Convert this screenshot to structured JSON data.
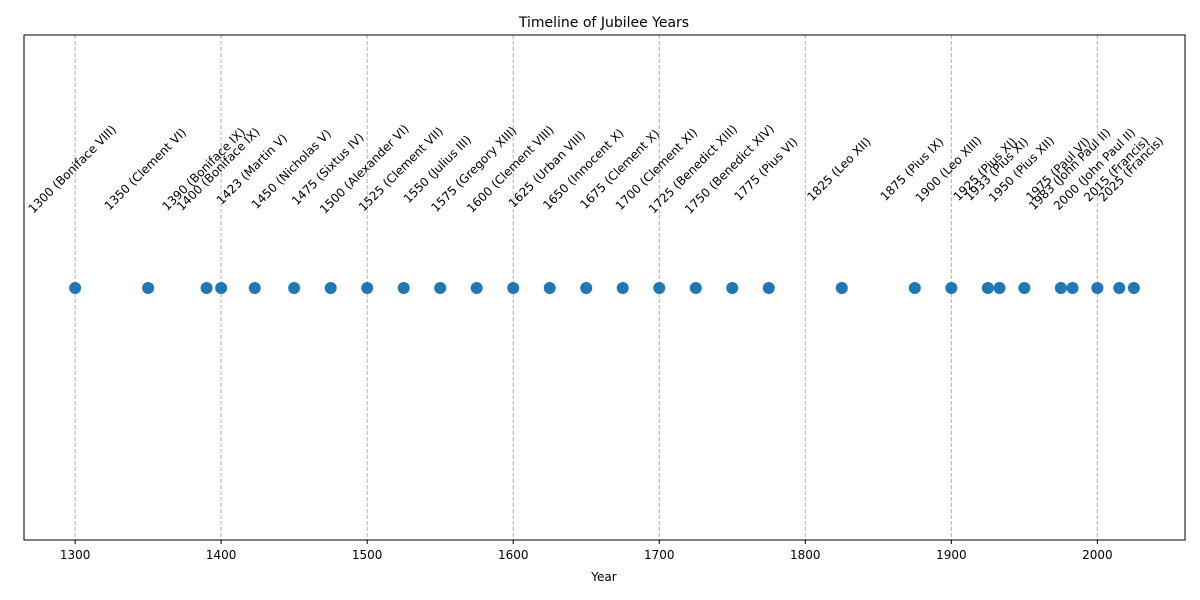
{
  "chart_data": {
    "type": "scatter",
    "title": "Timeline of Jubilee Years",
    "xlabel": "Year",
    "ylabel": "",
    "xlim": [
      1265,
      2060
    ],
    "x_ticks": [
      1300,
      1400,
      1500,
      1600,
      1700,
      1800,
      1900,
      2000
    ],
    "grid": "vertical dashed at major ticks",
    "color": "#1f77b4",
    "points": [
      {
        "year": 1300,
        "label": "1300 (Boniface VIII)"
      },
      {
        "year": 1350,
        "label": "1350 (Clement VI)"
      },
      {
        "year": 1390,
        "label": "1390 (Boniface IX)"
      },
      {
        "year": 1400,
        "label": "1400 (Boniface IX)"
      },
      {
        "year": 1423,
        "label": "1423 (Martin V)"
      },
      {
        "year": 1450,
        "label": "1450 (Nicholas V)"
      },
      {
        "year": 1475,
        "label": "1475 (Sixtus IV)"
      },
      {
        "year": 1500,
        "label": "1500 (Alexander VI)"
      },
      {
        "year": 1525,
        "label": "1525 (Clement VII)"
      },
      {
        "year": 1550,
        "label": "1550 (Julius III)"
      },
      {
        "year": 1575,
        "label": "1575 (Gregory XIII)"
      },
      {
        "year": 1600,
        "label": "1600 (Clement VIII)"
      },
      {
        "year": 1625,
        "label": "1625 (Urban VIII)"
      },
      {
        "year": 1650,
        "label": "1650 (Innocent X)"
      },
      {
        "year": 1675,
        "label": "1675 (Clement X)"
      },
      {
        "year": 1700,
        "label": "1700 (Clement XI)"
      },
      {
        "year": 1725,
        "label": "1725 (Benedict XIII)"
      },
      {
        "year": 1750,
        "label": "1750 (Benedict XIV)"
      },
      {
        "year": 1775,
        "label": "1775 (Pius VI)"
      },
      {
        "year": 1825,
        "label": "1825 (Leo XII)"
      },
      {
        "year": 1875,
        "label": "1875 (Pius IX)"
      },
      {
        "year": 1900,
        "label": "1900 (Leo XIII)"
      },
      {
        "year": 1925,
        "label": "1925 (Pius XI)"
      },
      {
        "year": 1933,
        "label": "1933 (Pius XI)"
      },
      {
        "year": 1950,
        "label": "1950 (Pius XII)"
      },
      {
        "year": 1975,
        "label": "1975 (Paul VI)"
      },
      {
        "year": 1983,
        "label": "1983 (John Paul II)"
      },
      {
        "year": 2000,
        "label": "2000 (John Paul II)"
      },
      {
        "year": 2015,
        "label": "2015 (Francis)"
      },
      {
        "year": 2025,
        "label": "2025 (Francis)"
      }
    ]
  }
}
